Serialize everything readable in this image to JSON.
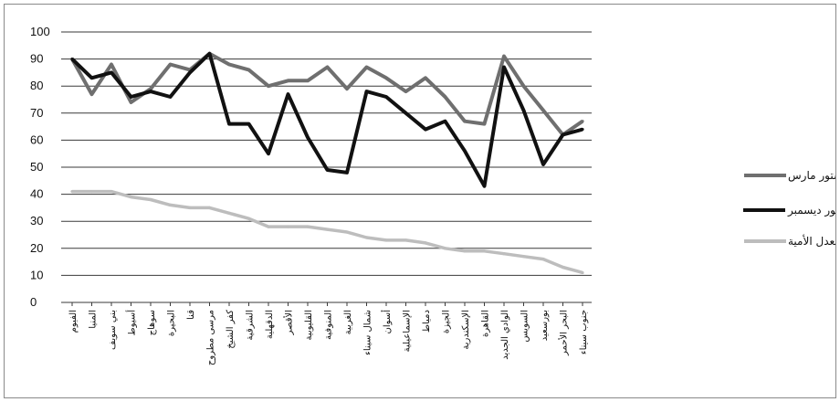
{
  "chart_data": {
    "type": "line",
    "ylim": [
      0,
      100
    ],
    "yticks": [
      0,
      10,
      20,
      30,
      40,
      50,
      60,
      70,
      80,
      90,
      100
    ],
    "grid": true,
    "legend_position": "right",
    "categories": [
      "الفيوم",
      "المنيا",
      "بني سويف",
      "أسيوط",
      "سوهاج",
      "البحيرة",
      "قنا",
      "مرسى مطروح",
      "كفر الشيخ",
      "الشرقية",
      "الدقهلية",
      "الأقصر",
      "القليوبية",
      "المنوفية",
      "الغربية",
      "شمال سيناء",
      "أسوان",
      "الإسماعيلية",
      "دمياط",
      "الجيزة",
      "الإسكندرية",
      "القاهرة",
      "الوادي الجديد",
      "السويس",
      "بورسعيد",
      "البحر الأحمر",
      "جنوب سيناء"
    ],
    "series": [
      {
        "name": "نسبة الموافقة على دستور مارس",
        "color": "#6f6f6f",
        "values": [
          90,
          77,
          88,
          74,
          79,
          88,
          86,
          92,
          88,
          86,
          80,
          82,
          82,
          87,
          79,
          87,
          83,
          78,
          83,
          76,
          67,
          66,
          91,
          80,
          71,
          62,
          67
        ]
      },
      {
        "name": "نسبة الموافقة على دستور ديسمبر",
        "color": "#111111",
        "values": [
          90,
          83,
          85,
          76,
          78,
          76,
          85,
          92,
          66,
          66,
          55,
          77,
          61,
          49,
          48,
          78,
          76,
          70,
          64,
          67,
          56,
          43,
          87,
          71,
          51,
          62,
          64
        ]
      },
      {
        "name": "معدل الأمية",
        "color": "#bdbdbd",
        "values": [
          41,
          41,
          41,
          39,
          38,
          36,
          35,
          35,
          33,
          31,
          28,
          28,
          28,
          27,
          26,
          24,
          23,
          23,
          22,
          20,
          19,
          19,
          18,
          17,
          16,
          13,
          11
        ]
      }
    ]
  }
}
